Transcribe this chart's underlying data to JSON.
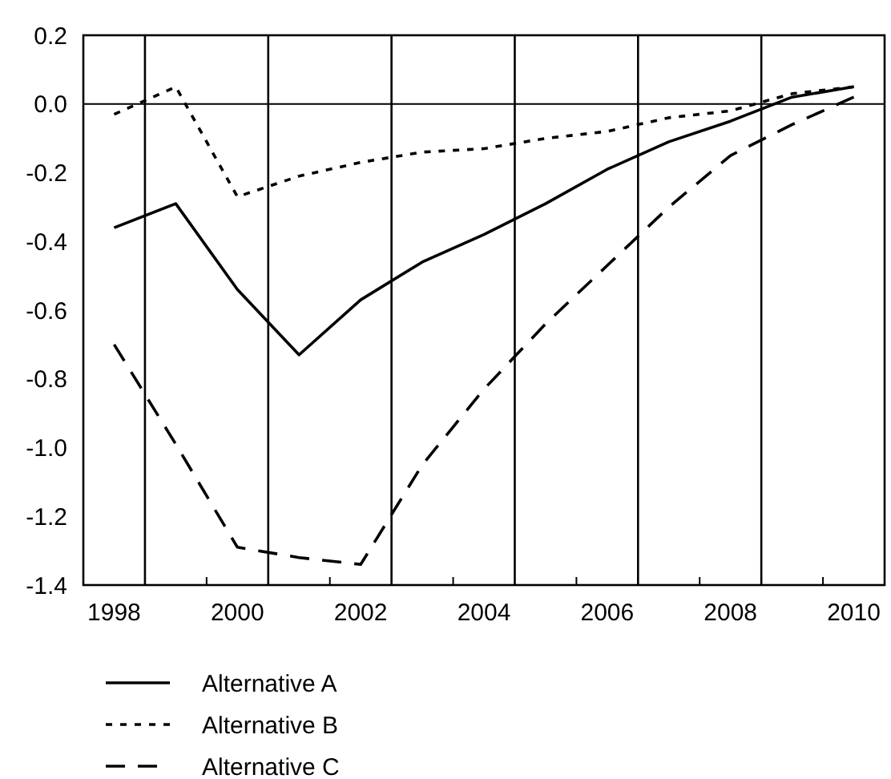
{
  "chart_data": {
    "type": "line",
    "categories": [
      "1998",
      null,
      "2000",
      null,
      "2002",
      null,
      "2004",
      null,
      "2006",
      null,
      "2008",
      null,
      "2010"
    ],
    "series": [
      {
        "name": "Alternative A",
        "color": "#000000",
        "line_style": "solid",
        "values": [
          -0.36,
          -0.29,
          -0.54,
          -0.73,
          -0.57,
          -0.46,
          -0.38,
          -0.29,
          -0.19,
          -0.11,
          -0.05,
          0.02,
          0.05
        ]
      },
      {
        "name": "Alternative B",
        "color": "#000000",
        "line_style": "dotted",
        "values": [
          -0.03,
          0.05,
          -0.27,
          -0.21,
          -0.17,
          -0.14,
          -0.13,
          -0.1,
          -0.08,
          -0.04,
          -0.02,
          0.03,
          0.05
        ]
      },
      {
        "name": "Alternative C",
        "color": "#000000",
        "line_style": "dashed",
        "values": [
          -0.7,
          -0.99,
          -1.29,
          -1.32,
          -1.34,
          -1.05,
          -0.83,
          -0.64,
          -0.47,
          -0.3,
          -0.15,
          -0.06,
          0.02
        ]
      }
    ],
    "ylim": [
      -1.4,
      0.2
    ],
    "yticks": [
      {
        "value": -1.4,
        "label": "-1.4"
      },
      {
        "value": -1.2,
        "label": "-1.2"
      },
      {
        "value": -1.0,
        "label": "-1.0"
      },
      {
        "value": -0.8,
        "label": "-0.8"
      },
      {
        "value": -0.6,
        "label": "-0.6"
      },
      {
        "value": -0.4,
        "label": "-0.4"
      },
      {
        "value": -0.2,
        "label": "-0.2"
      },
      {
        "value": 0,
        "label": "0.0"
      },
      {
        "value": 0.2,
        "label": "0.2"
      }
    ],
    "ref_lines": [
      {
        "axis": "y",
        "value": 0,
        "color": "#000000"
      }
    ],
    "grid": "x",
    "legend": "bottom",
    "marker": "none"
  }
}
